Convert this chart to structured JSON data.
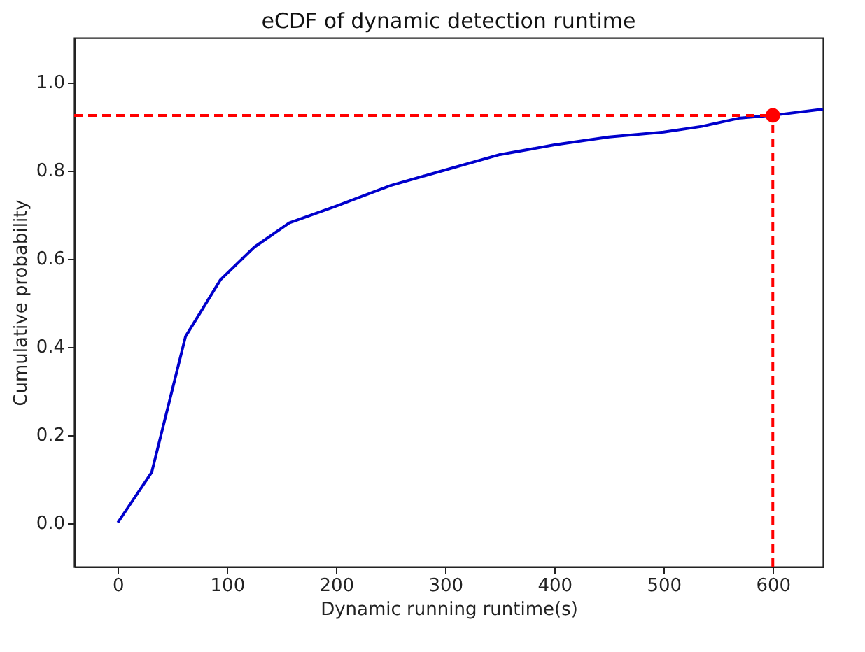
{
  "chart_data": {
    "type": "line",
    "title": "eCDF of dynamic detection runtime",
    "xlabel": "Dynamic running runtime(s)",
    "ylabel": "Cumulative probability",
    "series": [
      {
        "color": "#0000cc",
        "x": [
          0,
          31,
          62,
          94,
          125,
          157,
          200,
          250,
          300,
          350,
          400,
          450,
          500,
          535,
          570,
          600,
          646
        ],
        "values": [
          0,
          0.114,
          0.422,
          0.551,
          0.625,
          0.68,
          0.718,
          0.765,
          0.8,
          0.835,
          0.857,
          0.875,
          0.886,
          0.899,
          0.918,
          0.924,
          0.938
        ]
      },
      {
        "type": "scatter",
        "marker": "circle",
        "color": "#ff0000",
        "x": [
          600
        ],
        "values": [
          0.924
        ]
      }
    ],
    "ref_lines": [
      {
        "axis": "y",
        "value": 0.924,
        "color": "#ff0000",
        "line_style": "dashed"
      },
      {
        "axis": "x",
        "value": 600,
        "color": "#ff0000",
        "line_style": "dashed"
      }
    ],
    "xlim": [
      -40,
      646
    ],
    "ylim": [
      -0.1,
      1.1
    ],
    "xticks": [
      0,
      100,
      200,
      300,
      400,
      500,
      600
    ],
    "yticks": [
      {
        "value": 0,
        "label": "0.0"
      },
      {
        "value": 0.2,
        "label": "0.2"
      },
      {
        "value": 0.4,
        "label": "0.4"
      },
      {
        "value": 0.6,
        "label": "0.6"
      },
      {
        "value": 0.8,
        "label": "0.8"
      },
      {
        "value": 1,
        "label": "1.0"
      }
    ],
    "grid": false,
    "line_style": "solid"
  }
}
